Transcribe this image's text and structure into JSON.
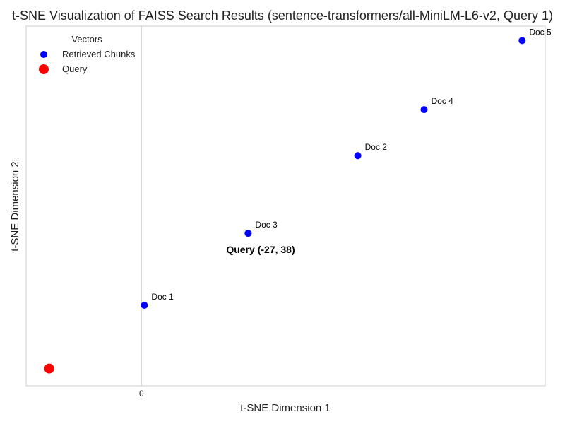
{
  "chart_data": {
    "type": "scatter",
    "title": "t-SNE Visualization of FAISS Search Results (sentence-transformers/all-MiniLM-L6-v2, Query 1)",
    "xlabel": "t-SNE Dimension 1",
    "ylabel": "t-SNE Dimension 2",
    "xlim": [
      -40,
      140
    ],
    "ylim": [
      -8,
      117
    ],
    "x_ticks": [
      0
    ],
    "grid": true,
    "legend": {
      "title": "Vectors",
      "position": "top-left",
      "entries": [
        "Retrieved Chunks",
        "Query"
      ]
    },
    "series": [
      {
        "name": "Retrieved Chunks",
        "color": "#0000ff",
        "points": [
          {
            "label": "Doc 1",
            "x": 1,
            "y": 20
          },
          {
            "label": "Doc 2",
            "x": 75,
            "y": 72
          },
          {
            "label": "Doc 3",
            "x": 37,
            "y": 45
          },
          {
            "label": "Doc 4",
            "x": 98,
            "y": 88
          },
          {
            "label": "Doc 5",
            "x": 132,
            "y": 112
          }
        ]
      },
      {
        "name": "Query",
        "color": "#ff0000",
        "points": [
          {
            "label": "",
            "x": -32,
            "y": -2
          }
        ]
      }
    ],
    "annotation": "Query (-27, 38)"
  }
}
